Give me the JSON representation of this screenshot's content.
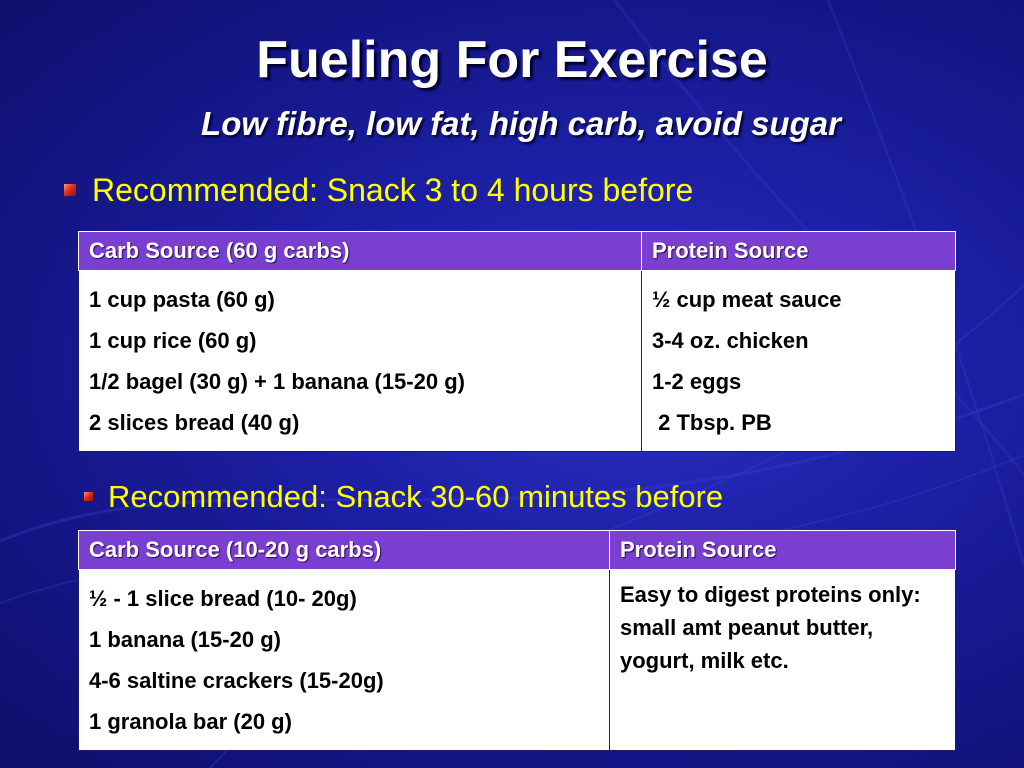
{
  "slide": {
    "title": "Fueling For Exercise",
    "subtitle": "Low fibre, low fat, high carb, avoid sugar",
    "background_color": "#1d20a6",
    "text_color": "#ffffff",
    "bullet_color": "#ffff00"
  },
  "section1": {
    "bullet": "Recommended:  Snack 3 to 4 hours before",
    "table": {
      "headers": [
        "Carb Source (60 g carbs)",
        "Protein Source"
      ],
      "carb_items": [
        "1 cup pasta (60 g)",
        "1 cup rice (60 g)",
        "1/2 bagel (30 g) + 1 banana (15-20 g)",
        "2 slices bread (40 g)"
      ],
      "protein_items": [
        "½ cup meat sauce",
        "3-4 oz. chicken",
        "1-2 eggs",
        " 2 Tbsp. PB"
      ]
    }
  },
  "section2": {
    "bullet": "Recommended:  Snack 30-60 minutes before",
    "table": {
      "headers": [
        "Carb Source (10-20 g carbs)",
        "Protein Source"
      ],
      "carb_items": [
        "½ - 1 slice bread (10- 20g)",
        "1 banana (15-20 g)",
        "4-6 saltine crackers (15-20g)",
        "1 granola bar (20 g)"
      ],
      "protein_text": "Easy to digest proteins only:  small amt peanut butter, yogurt, milk etc."
    }
  },
  "icons": {
    "bullet": "red-square-bullet-icon"
  }
}
